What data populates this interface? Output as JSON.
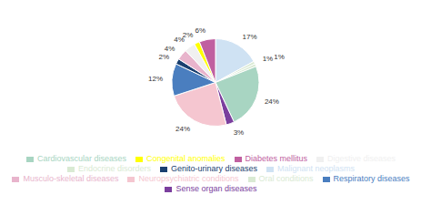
{
  "chart_data": {
    "type": "pie",
    "categories": [
      "Malignant neoplasms",
      "Endocrine disorders",
      "Oral conditions",
      "Cardiovascular diseases",
      "Sense organ diseases",
      "Neuropsychiatric conditions",
      "Respiratory diseases",
      "Genito-urinary diseases",
      "Musculo-skeletal diseases",
      "Digestive diseases",
      "Congenital anomalies",
      "Diabetes mellitus"
    ],
    "values": [
      17,
      1,
      1,
      24,
      3,
      24,
      12,
      2,
      4,
      4,
      2,
      6
    ],
    "value_labels": [
      "17%",
      "1%",
      "1%",
      "24%",
      "3%",
      "24%",
      "12%",
      "2%",
      "4%",
      "4%",
      "2%",
      "6%"
    ],
    "colors": [
      "#cfe2f3",
      "#d9ead3",
      "#d9ead3",
      "#a8d5c2",
      "#7b3f9e",
      "#f5c6d0",
      "#4a7ebf",
      "#1a3f6f",
      "#e8b4cc",
      "#f0f0f0",
      "#ffff00",
      "#c060a0"
    ],
    "legend": "bottom",
    "data_labels": true
  }
}
